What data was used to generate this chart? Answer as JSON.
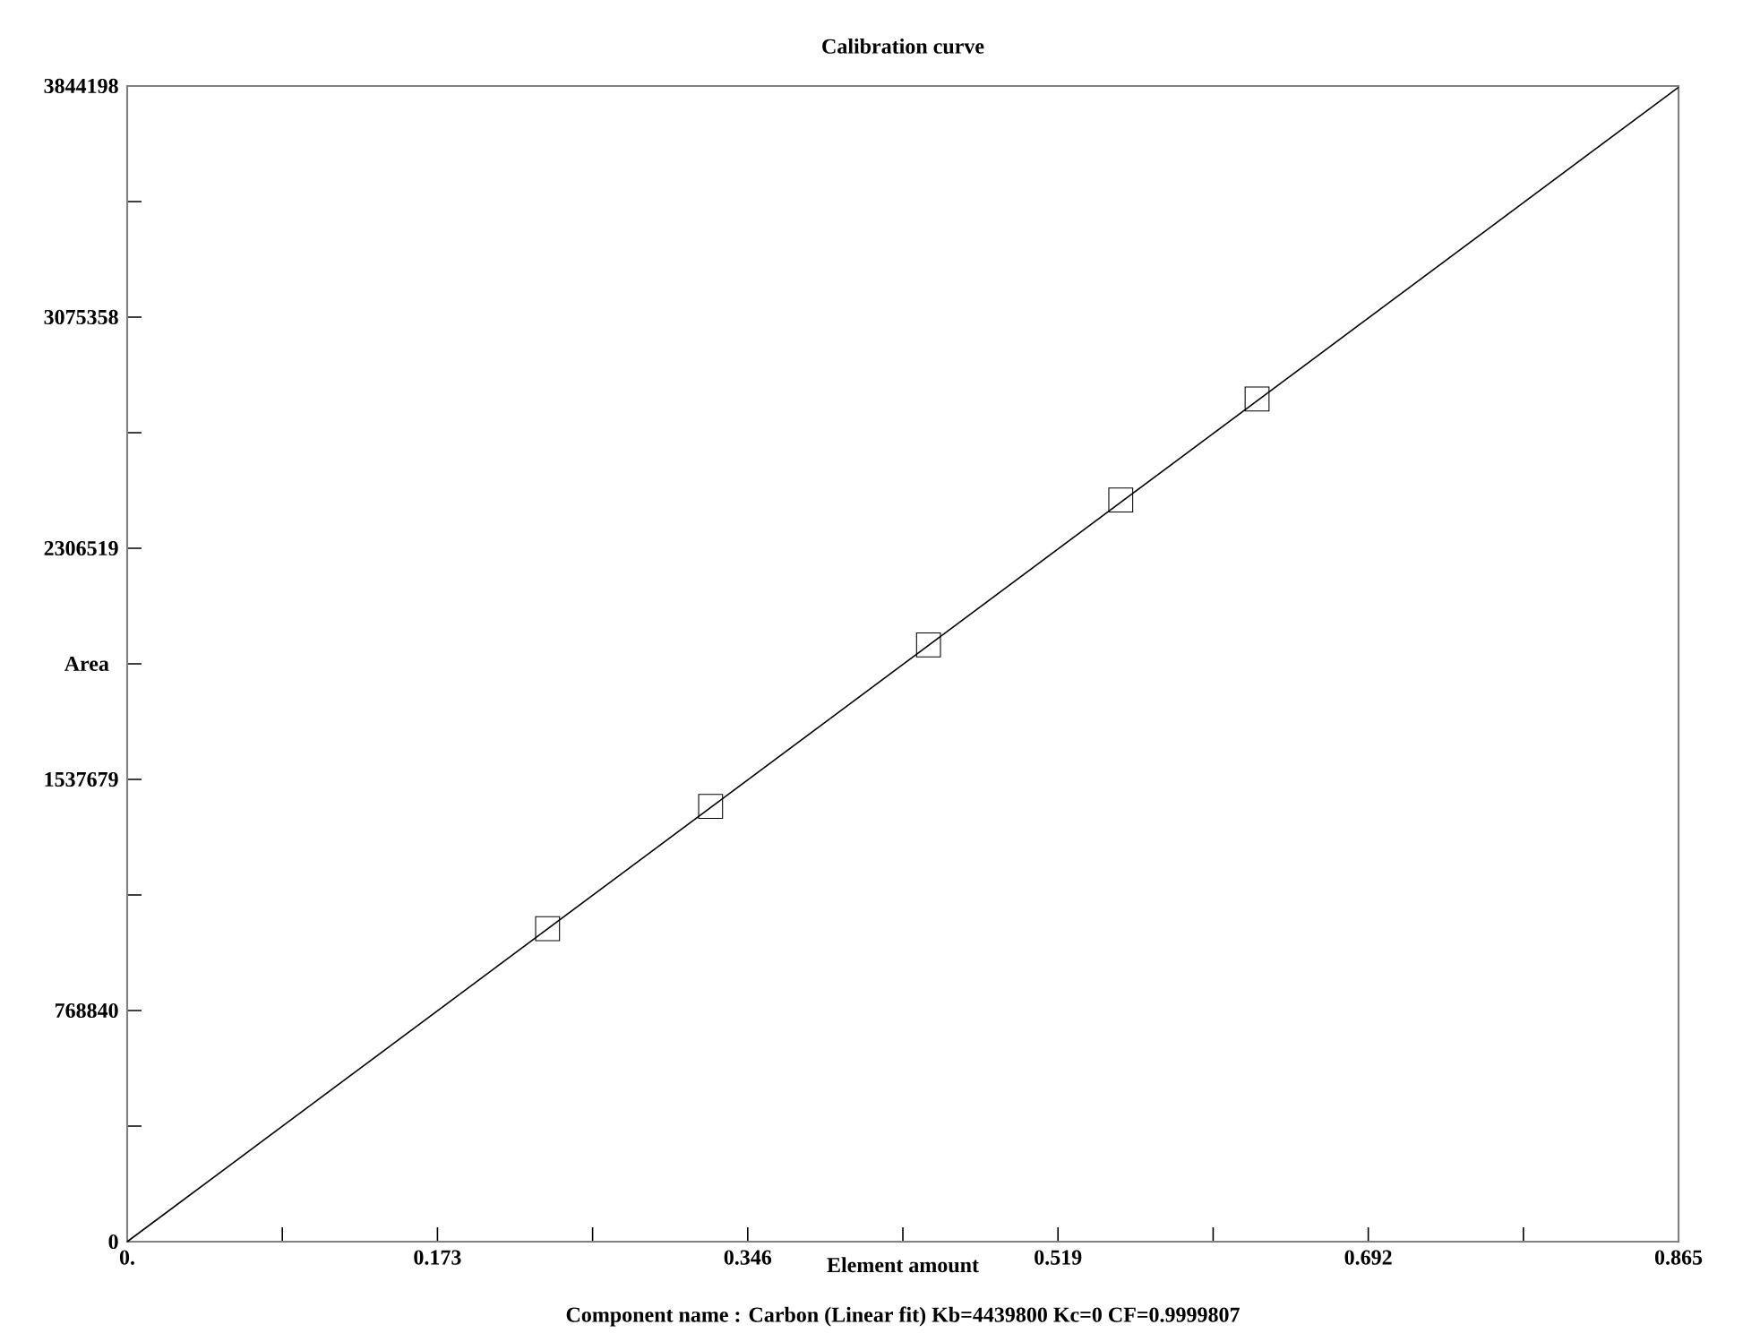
{
  "chart_data": {
    "type": "scatter",
    "title": "Calibration curve",
    "xlabel": "Element amount",
    "ylabel": "Area",
    "annotations": [
      "Component name : Carbon  (Linear fit)   Kb=4439800   Kc=0   CF=0.9999807"
    ],
    "series": [
      {
        "color": "#000000",
        "marker": "square",
        "x": [
          0.2344,
          0.3253,
          0.4468,
          0.554,
          0.63
        ],
        "values": [
          1041000,
          1448000,
          1985000,
          2467000,
          2803000
        ]
      },
      {
        "type": "line",
        "color": "#000000",
        "line_style": "solid",
        "x": [
          0,
          0.865
        ],
        "values": [
          0,
          3840000
        ]
      }
    ],
    "xlim": [
      0,
      0.865
    ],
    "ylim": [
      0,
      3844198
    ],
    "xticks": [
      {
        "value": 0,
        "label": "0."
      },
      {
        "value": 0.0865,
        "label": null
      },
      0.173,
      {
        "value": 0.2595,
        "label": null
      },
      0.346,
      {
        "value": 0.4325,
        "label": null
      },
      0.519,
      {
        "value": 0.6055,
        "label": null
      },
      0.692,
      {
        "value": 0.7785,
        "label": null
      },
      0.865
    ],
    "yticks": [
      0,
      {
        "value": 384420,
        "label": null
      },
      768840,
      {
        "value": 1153259,
        "label": null
      },
      1537679,
      {
        "value": 1922099,
        "label": null
      },
      2306519,
      {
        "value": 2690939,
        "label": null
      },
      3075358,
      {
        "value": 3459778,
        "label": null
      },
      3844198
    ],
    "grid": false
  }
}
